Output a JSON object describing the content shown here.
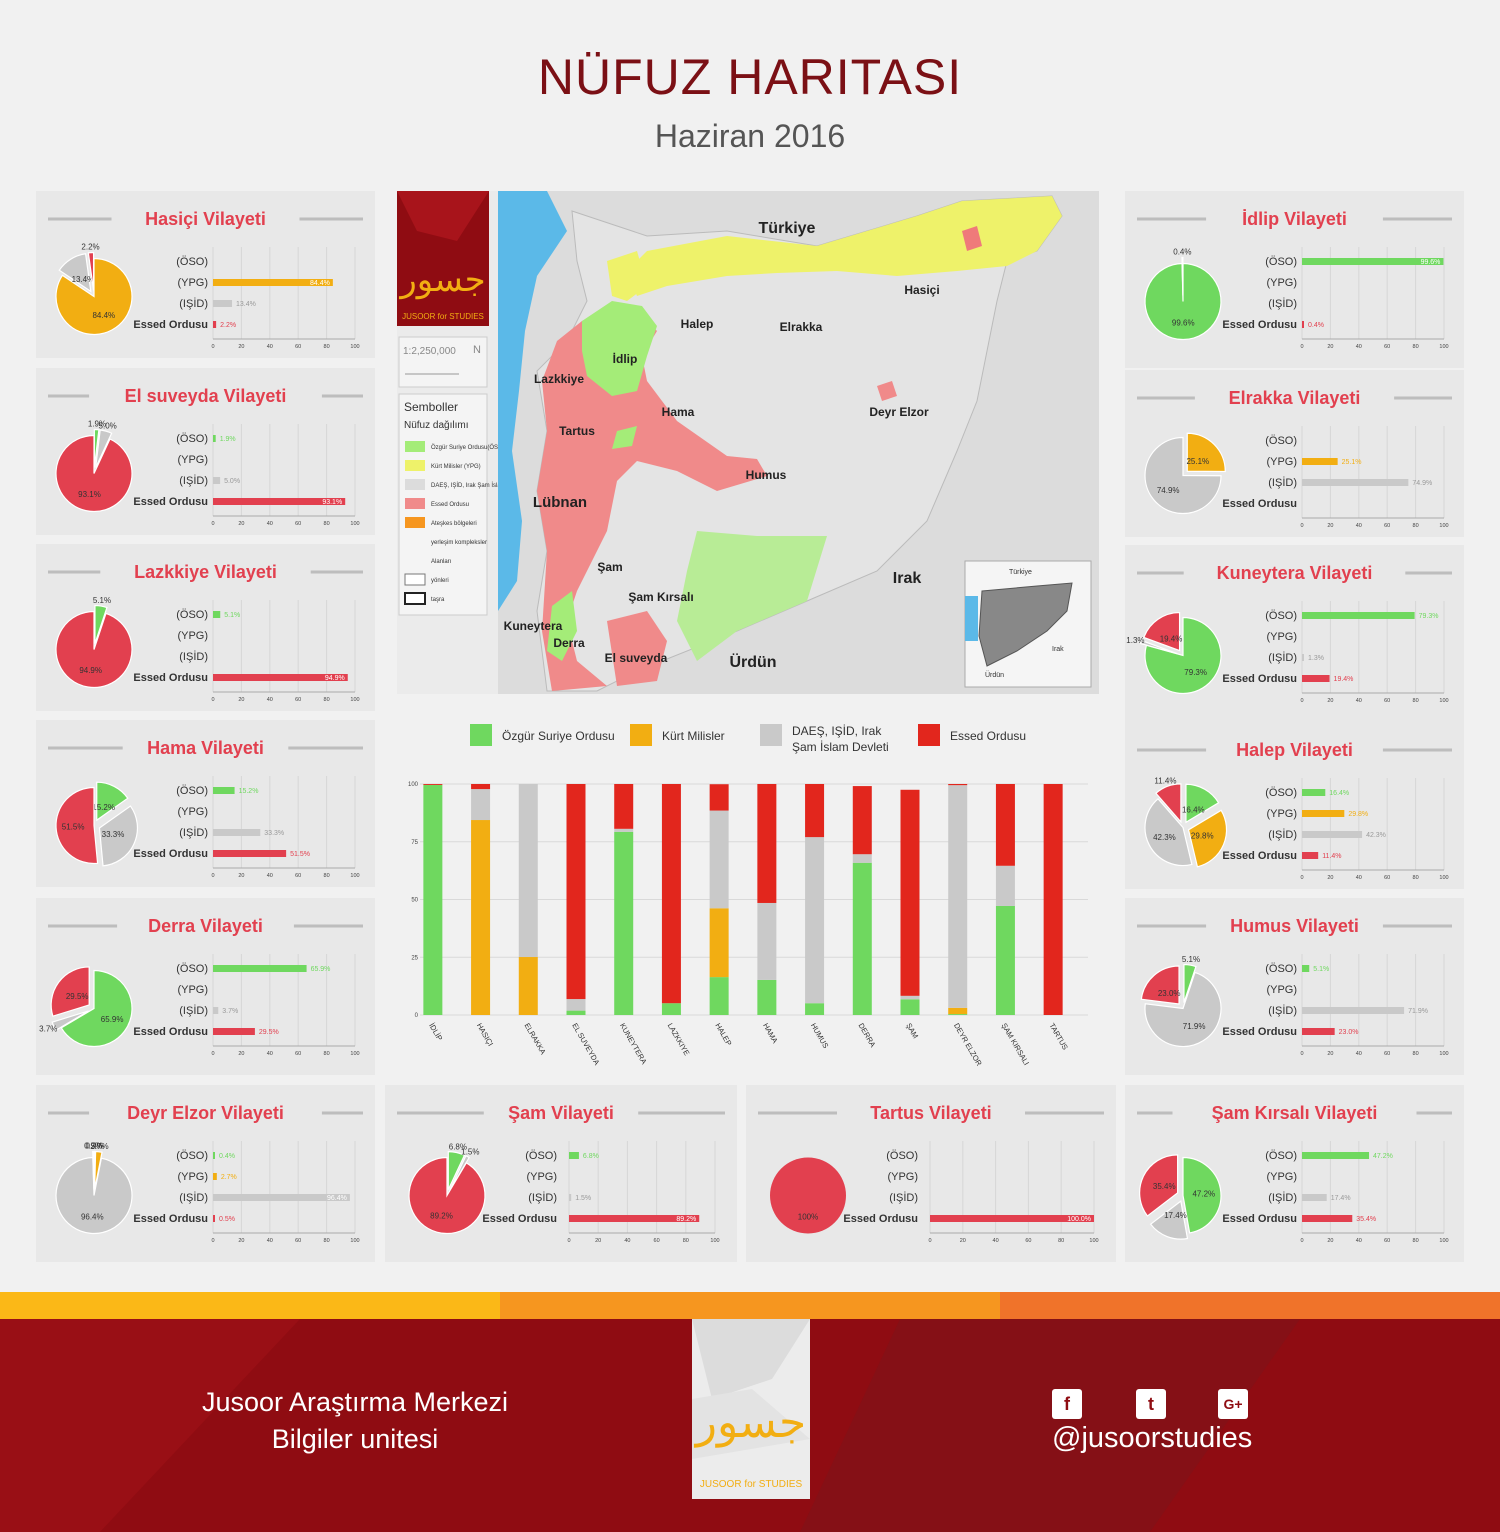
{
  "header": {
    "title": "NÜFUZ HARITASI",
    "subtitle": "Haziran 2016"
  },
  "colors": {
    "oso": "#6fd85f",
    "ypg": "#f2ae12",
    "isid": "#c9c9c9",
    "essed": "#e2404f",
    "title_red": "#e2404f",
    "bar_red": "#e2261d"
  },
  "row_labels": [
    "(ÖSO)",
    "(YPG)",
    "(IŞİD)",
    "Essed Ordusu"
  ],
  "x_ticks": [
    "0",
    "20",
    "40",
    "60",
    "80",
    "100"
  ],
  "chart_data": [
    {
      "type": "pie",
      "title": "Hasiçi Vilayeti",
      "categories": [
        "ÖSO",
        "YPG",
        "IŞİD",
        "Essed Ordusu"
      ],
      "values": [
        0,
        84.4,
        13.4,
        2.2
      ],
      "labels": [
        "",
        "84.4%",
        "13.4%",
        "2.2%"
      ]
    },
    {
      "type": "pie",
      "title": "El suveyda Vilayeti",
      "categories": [
        "ÖSO",
        "YPG",
        "IŞİD",
        "Essed Ordusu"
      ],
      "values": [
        1.9,
        0,
        5.0,
        93.1
      ],
      "labels": [
        "1.9%",
        "",
        "5.0%",
        "93.1%"
      ]
    },
    {
      "type": "pie",
      "title": "Lazkkiye Vilayeti",
      "categories": [
        "ÖSO",
        "YPG",
        "IŞİD",
        "Essed Ordusu"
      ],
      "values": [
        5.1,
        0,
        0,
        94.9
      ],
      "labels": [
        "5.1%",
        "",
        "",
        "94.9%"
      ]
    },
    {
      "type": "pie",
      "title": "Hama Vilayeti",
      "categories": [
        "ÖSO",
        "YPG",
        "IŞİD",
        "Essed Ordusu"
      ],
      "values": [
        15.2,
        0,
        33.3,
        51.5
      ],
      "labels": [
        "15.2%",
        "",
        "33.3%",
        "51.5%"
      ]
    },
    {
      "type": "pie",
      "title": "Derra Vilayeti",
      "categories": [
        "ÖSO",
        "YPG",
        "IŞİD",
        "Essed Ordusu"
      ],
      "values": [
        65.9,
        0,
        3.7,
        29.5
      ],
      "labels": [
        "65.9%",
        "",
        "3.7%",
        "29.5%"
      ]
    },
    {
      "type": "pie",
      "title": "Deyr Elzor Vilayeti",
      "categories": [
        "ÖSO",
        "YPG",
        "IŞİD",
        "Essed Ordusu"
      ],
      "values": [
        0.4,
        2.7,
        96.4,
        0.5
      ],
      "labels": [
        "0.4%",
        "2.7%",
        "96.4%",
        "0.5%"
      ]
    },
    {
      "type": "pie",
      "title": "Şam Vilayeti",
      "categories": [
        "ÖSO",
        "YPG",
        "IŞİD",
        "Essed Ordusu"
      ],
      "values": [
        6.8,
        0,
        1.5,
        89.2
      ],
      "labels": [
        "6.8%",
        "",
        "1.5%",
        "89.2%"
      ]
    },
    {
      "type": "pie",
      "title": "Tartus Vilayeti",
      "categories": [
        "ÖSO",
        "YPG",
        "IŞİD",
        "Essed Ordusu"
      ],
      "values": [
        0,
        0,
        0,
        100
      ],
      "labels": [
        "",
        "",
        "",
        "100%"
      ]
    },
    {
      "type": "pie",
      "title": "İdlip Vilayeti",
      "categories": [
        "ÖSO",
        "YPG",
        "IŞİD",
        "Essed Ordusu"
      ],
      "values": [
        99.6,
        0,
        0,
        0.4
      ],
      "labels": [
        "99.6%",
        "",
        "",
        "0.4%"
      ]
    },
    {
      "type": "pie",
      "title": "Elrakka Vilayeti",
      "categories": [
        "ÖSO",
        "YPG",
        "IŞİD",
        "Essed Ordusu"
      ],
      "values": [
        0,
        25.1,
        74.9,
        0
      ],
      "labels": [
        "",
        "25.1%",
        "74.9%",
        ""
      ]
    },
    {
      "type": "pie",
      "title": "Kuneytera Vilayeti",
      "categories": [
        "ÖSO",
        "YPG",
        "IŞİD",
        "Essed Ordusu"
      ],
      "values": [
        79.3,
        0,
        1.3,
        19.4
      ],
      "labels": [
        "79.3%",
        "",
        "1.3%",
        "19.4%"
      ]
    },
    {
      "type": "pie",
      "title": "Halep Vilayeti",
      "categories": [
        "ÖSO",
        "YPG",
        "IŞİD",
        "Essed Ordusu"
      ],
      "values": [
        16.4,
        29.8,
        42.3,
        11.4
      ],
      "labels": [
        "16.4%",
        "29.8%",
        "42.3%",
        "11.4%"
      ]
    },
    {
      "type": "pie",
      "title": "Humus Vilayeti",
      "categories": [
        "ÖSO",
        "YPG",
        "IŞİD",
        "Essed Ordusu"
      ],
      "values": [
        5.1,
        0,
        71.9,
        23.0
      ],
      "labels": [
        "5.1%",
        "",
        "71.9%",
        "23.0%"
      ]
    },
    {
      "type": "pie",
      "title": "Şam Kırsalı Vilayeti",
      "categories": [
        "ÖSO",
        "YPG",
        "IŞİD",
        "Essed Ordusu"
      ],
      "values": [
        47.2,
        0,
        17.4,
        35.4
      ],
      "labels": [
        "47.2%",
        "",
        "17.4%",
        "35.4%"
      ]
    },
    {
      "type": "bar",
      "categories": [
        "İDLİP",
        "HASIÇI",
        "ELRAKKA",
        "EL SUVEYDA",
        "KUNEYTERA",
        "LAZKKIYE",
        "HALEP",
        "HAMA",
        "HUMUS",
        "DERRA",
        "ŞAM",
        "DEYR ELZOR",
        "ŞAM KIRSALI",
        "TARTUS"
      ],
      "series": [
        {
          "name": "Özgür Suriye Ordusu",
          "values": [
            99.6,
            0,
            0,
            1.9,
            79.3,
            5.1,
            16.4,
            15.2,
            5.1,
            65.9,
            6.8,
            0.4,
            47.2,
            0
          ]
        },
        {
          "name": "Kürt  Milisler",
          "values": [
            0,
            84.4,
            25.1,
            0,
            0,
            0,
            29.8,
            0,
            0,
            0,
            0,
            2.7,
            0,
            0
          ]
        },
        {
          "name": "DAEŞ, IŞİD, Irak Şam İslam Devleti",
          "values": [
            0,
            13.4,
            74.9,
            5.0,
            1.3,
            0,
            42.3,
            33.3,
            71.9,
            3.7,
            1.5,
            96.4,
            17.4,
            0
          ]
        },
        {
          "name": "Essed Ordusu",
          "values": [
            0.4,
            2.2,
            0,
            93.1,
            19.4,
            94.9,
            11.4,
            51.5,
            23.0,
            29.5,
            89.2,
            0.5,
            35.4,
            100
          ]
        }
      ],
      "y_ticks": [
        "0",
        "25",
        "50",
        "75",
        "100"
      ],
      "ylim": [
        0,
        100
      ],
      "stacked": true,
      "grid": true
    }
  ],
  "map": {
    "labels": [
      "Türkiye",
      "Hasiçi",
      "Halep",
      "Elrakka",
      "İdlip",
      "Lazkkiye",
      "Hama",
      "Deyr Elzor",
      "Tartus",
      "Humus",
      "Lübnan",
      "Şam",
      "Şam Kırsalı",
      "Irak",
      "Kuneytera",
      "Derra",
      "El suveyda",
      "Ürdün"
    ],
    "scale": "1:2,250,000",
    "legend_title": "Semboller",
    "legend_subtitle": "Nüfuz dağılımı",
    "legend_items": [
      "Özgür Suriye Ordusu(ÖSO)",
      "Kürt Milisler (YPG)",
      "DAEŞ, IŞİD, Irak Şam İslam Devleti",
      "Essed Ordusu",
      "Ateşkes bölgeleri",
      "yerleşim kompleksler",
      "Alanları",
      "yönleri",
      "taşra"
    ],
    "inset_labels": [
      "Türkiye",
      "Irak",
      "Ürdün"
    ]
  },
  "footer": {
    "line1": "Jusoor Araştırma Merkezi",
    "line2": "Bilgiler unitesi",
    "handle": "@jusoorstudies",
    "logo_text": "JUSOOR for STUDIES",
    "social": [
      "f",
      "t",
      "G+"
    ]
  }
}
